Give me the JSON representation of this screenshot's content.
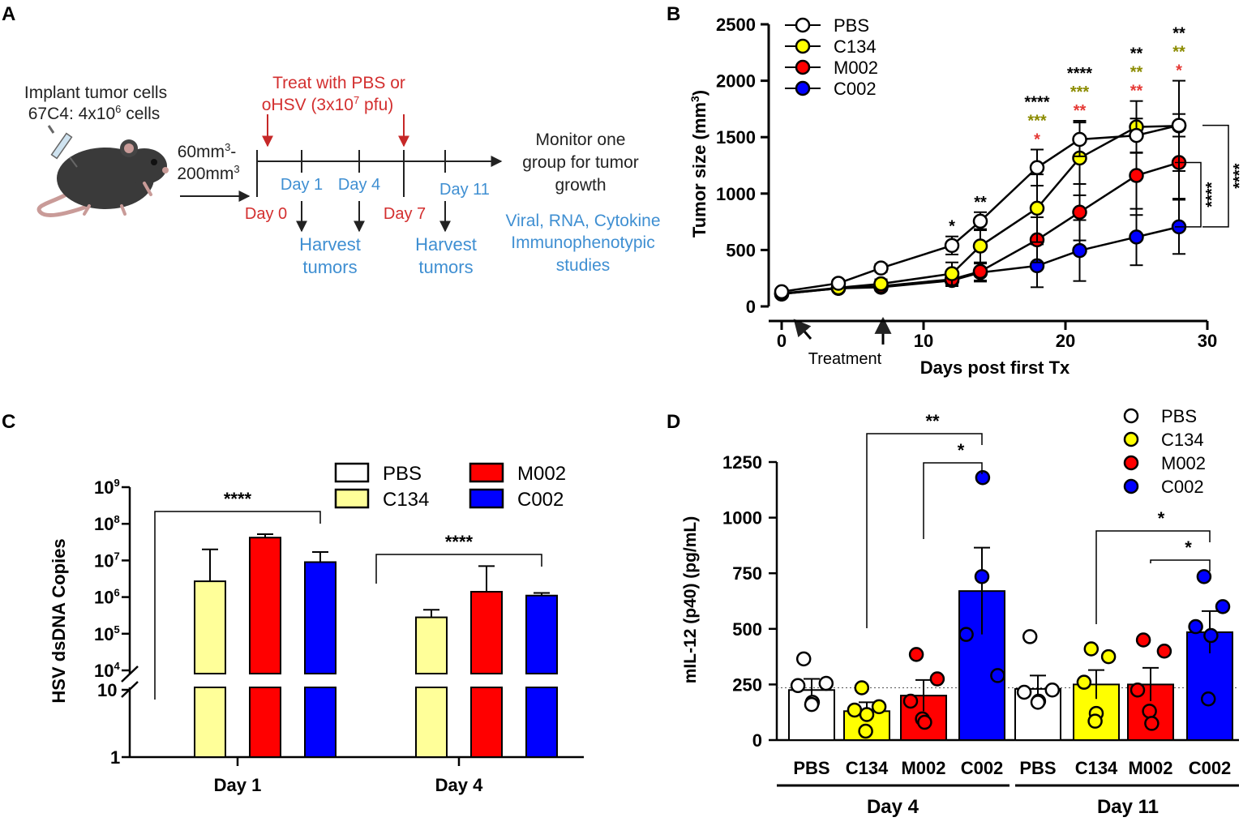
{
  "panel_letters": {
    "a": "A",
    "b": "B",
    "c": "C",
    "d": "D"
  },
  "colors": {
    "pbs": "#ffffff",
    "c134": "#ffff00",
    "m002": "#ff0000",
    "c002": "#0000ff",
    "c134_pale": "#ffff99",
    "red_text": "#e53935",
    "blue_text": "#3f8fd2",
    "olive": "#8b8b00",
    "black": "#000000",
    "red_arrow": "#c62828"
  },
  "panel_a": {
    "implant": {
      "line1": "Implant tumor cells",
      "line2_pre": "67C4: 4x10",
      "line2_sup": "6",
      "line2_post": " cells"
    },
    "size_range": {
      "line1_pre": "60mm",
      "line1_sup": "3",
      "line1_post": "-",
      "line2_pre": "200mm",
      "line2_sup": "3"
    },
    "treat": {
      "line1": "Treat with PBS or",
      "line2_pre": "oHSV (3x10",
      "line2_sup": "7",
      "line2_post": " pfu)"
    },
    "days": {
      "d0": "Day 0",
      "d1": "Day 1",
      "d4": "Day 4",
      "d7": "Day 7",
      "d11": "Day 11"
    },
    "harvest": {
      "line1": "Harvest",
      "line2": "tumors"
    },
    "monitor": {
      "line1": "Monitor one",
      "line2": "group for tumor",
      "line3": "growth"
    },
    "studies": {
      "line1": "Viral, RNA, Cytokine",
      "line2": "Immunophenotypic",
      "line3": "studies"
    },
    "mouse": "mouse-with-syringe"
  },
  "chart_data": [
    {
      "panel": "B",
      "type": "line",
      "title": "",
      "xlabel": "Days post first Tx",
      "ylabel_pre": "Tumor size (mm",
      "ylabel_sup": "3",
      "ylabel_post": ")",
      "xlim": [
        0,
        30
      ],
      "ylim": [
        0,
        2500
      ],
      "xticks": [
        0,
        10,
        20,
        30
      ],
      "yticks": [
        0,
        500,
        1000,
        1500,
        2000,
        2500
      ],
      "legend": [
        "PBS",
        "C134",
        "M002",
        "C002"
      ],
      "treatment_label": "Treatment",
      "series": [
        {
          "name": "PBS",
          "x": [
            0,
            4,
            7,
            12,
            14,
            18,
            21,
            25,
            28
          ],
          "y": [
            130,
            205,
            340,
            540,
            755,
            1230,
            1480,
            1515,
            1605
          ],
          "err": [
            25,
            30,
            35,
            80,
            80,
            160,
            150,
            150,
            100
          ]
        },
        {
          "name": "C134",
          "x": [
            0,
            4,
            7,
            12,
            14,
            18,
            21,
            25,
            28
          ],
          "y": [
            115,
            165,
            200,
            290,
            535,
            870,
            1315,
            1590,
            1600
          ],
          "err": [
            20,
            25,
            40,
            100,
            150,
            300,
            330,
            230,
            400
          ]
        },
        {
          "name": "M002",
          "x": [
            0,
            4,
            7,
            12,
            14,
            18,
            21,
            25,
            28
          ],
          "y": [
            110,
            160,
            180,
            240,
            310,
            590,
            835,
            1160,
            1275
          ],
          "err": [
            20,
            25,
            30,
            60,
            80,
            200,
            250,
            350,
            320
          ]
        },
        {
          "name": "C002",
          "x": [
            0,
            4,
            7,
            12,
            14,
            18,
            21,
            25,
            28
          ],
          "y": [
            110,
            160,
            170,
            230,
            300,
            360,
            495,
            615,
            705
          ],
          "err": [
            20,
            25,
            30,
            50,
            80,
            190,
            270,
            250,
            240
          ]
        }
      ],
      "significance": [
        {
          "x": 12,
          "labels": [
            {
              "text": "*",
              "color": "black"
            }
          ]
        },
        {
          "x": 14,
          "labels": [
            {
              "text": "**",
              "color": "black"
            }
          ]
        },
        {
          "x": 18,
          "labels": [
            {
              "text": "****",
              "color": "black"
            },
            {
              "text": "***",
              "color": "olive"
            },
            {
              "text": "*",
              "color": "red"
            }
          ]
        },
        {
          "x": 21,
          "labels": [
            {
              "text": "****",
              "color": "black"
            },
            {
              "text": "***",
              "color": "olive"
            },
            {
              "text": "**",
              "color": "red"
            }
          ]
        },
        {
          "x": 25,
          "labels": [
            {
              "text": "**",
              "color": "black"
            },
            {
              "text": "**",
              "color": "olive"
            },
            {
              "text": "**",
              "color": "red"
            }
          ]
        },
        {
          "x": 28,
          "labels": [
            {
              "text": "**",
              "color": "black"
            },
            {
              "text": "**",
              "color": "olive"
            },
            {
              "text": "*",
              "color": "red"
            }
          ]
        }
      ],
      "brackets": [
        {
          "from": "PBS",
          "to": "C002",
          "label": "****"
        },
        {
          "from": "M002",
          "to": "C002",
          "label": "****"
        }
      ]
    },
    {
      "panel": "C",
      "type": "bar",
      "title": "",
      "xlabel": "",
      "ylabel": "HSV dsDNA Copies",
      "yscale": "log (broken axis)",
      "ytick_labels": [
        "1",
        "10",
        "10^4",
        "10^5",
        "10^6",
        "10^7",
        "10^8",
        "10^9"
      ],
      "categories": [
        "Day 1",
        "Day 4"
      ],
      "legend": [
        "PBS",
        "M002",
        "C134",
        "C002"
      ],
      "series": [
        {
          "name": "PBS",
          "values": [
            0,
            0
          ],
          "err_upper": [
            0,
            0
          ]
        },
        {
          "name": "C134",
          "values": [
            2700000,
            280000
          ],
          "err_upper": [
            20000000,
            450000
          ]
        },
        {
          "name": "M002",
          "values": [
            42000000,
            1400000
          ],
          "err_upper": [
            52000000,
            7000000
          ]
        },
        {
          "name": "C002",
          "values": [
            9000000,
            1100000
          ],
          "err_upper": [
            17000000,
            1300000
          ]
        }
      ],
      "brackets": [
        {
          "category": "Day 1",
          "from": "PBS",
          "to": "C002",
          "label": "****"
        },
        {
          "category": "Day 4",
          "from": "PBS",
          "to": "C002",
          "label": "****"
        }
      ]
    },
    {
      "panel": "D",
      "type": "bar",
      "title": "",
      "xlabel": "",
      "ylabel": "mIL-12 (p40) (pg/mL)",
      "ylim": [
        0,
        1250
      ],
      "yticks": [
        0,
        250,
        500,
        750,
        1000,
        1250
      ],
      "reference_line": 235,
      "legend": [
        "PBS",
        "C134",
        "M002",
        "C002"
      ],
      "groups": [
        {
          "label": "Day 4",
          "bars": [
            {
              "name": "PBS",
              "mean": 225,
              "sem": 50,
              "points": [
                365,
                255,
                245,
                170,
                160
              ]
            },
            {
              "name": "C134",
              "mean": 130,
              "sem": 40,
              "points": [
                235,
                150,
                135,
                115,
                40
              ]
            },
            {
              "name": "M002",
              "mean": 200,
              "sem": 70,
              "points": [
                385,
                275,
                175,
                95,
                80
              ]
            },
            {
              "name": "C002",
              "mean": 670,
              "sem": 195,
              "points": [
                1180,
                735,
                475,
                290
              ]
            }
          ]
        },
        {
          "label": "Day 11",
          "bars": [
            {
              "name": "PBS",
              "mean": 230,
              "sem": 60,
              "points": [
                465,
                225,
                215,
                175,
                170
              ]
            },
            {
              "name": "C134",
              "mean": 250,
              "sem": 65,
              "points": [
                410,
                375,
                260,
                120,
                85
              ]
            },
            {
              "name": "M002",
              "mean": 250,
              "sem": 75,
              "points": [
                450,
                400,
                225,
                130,
                75
              ]
            },
            {
              "name": "C002",
              "mean": 485,
              "sem": 95,
              "points": [
                735,
                600,
                510,
                470,
                185
              ]
            }
          ]
        }
      ],
      "brackets": [
        {
          "group": "Day 4",
          "from": "C134",
          "to": "C002",
          "label": "**"
        },
        {
          "group": "Day 4",
          "from": "M002",
          "to": "C002",
          "label": "*"
        },
        {
          "group": "Day 11",
          "from": "C134",
          "to": "C002",
          "label": "*"
        },
        {
          "group": "Day 11",
          "from": "M002",
          "to": "C002",
          "label": "*"
        }
      ]
    }
  ]
}
